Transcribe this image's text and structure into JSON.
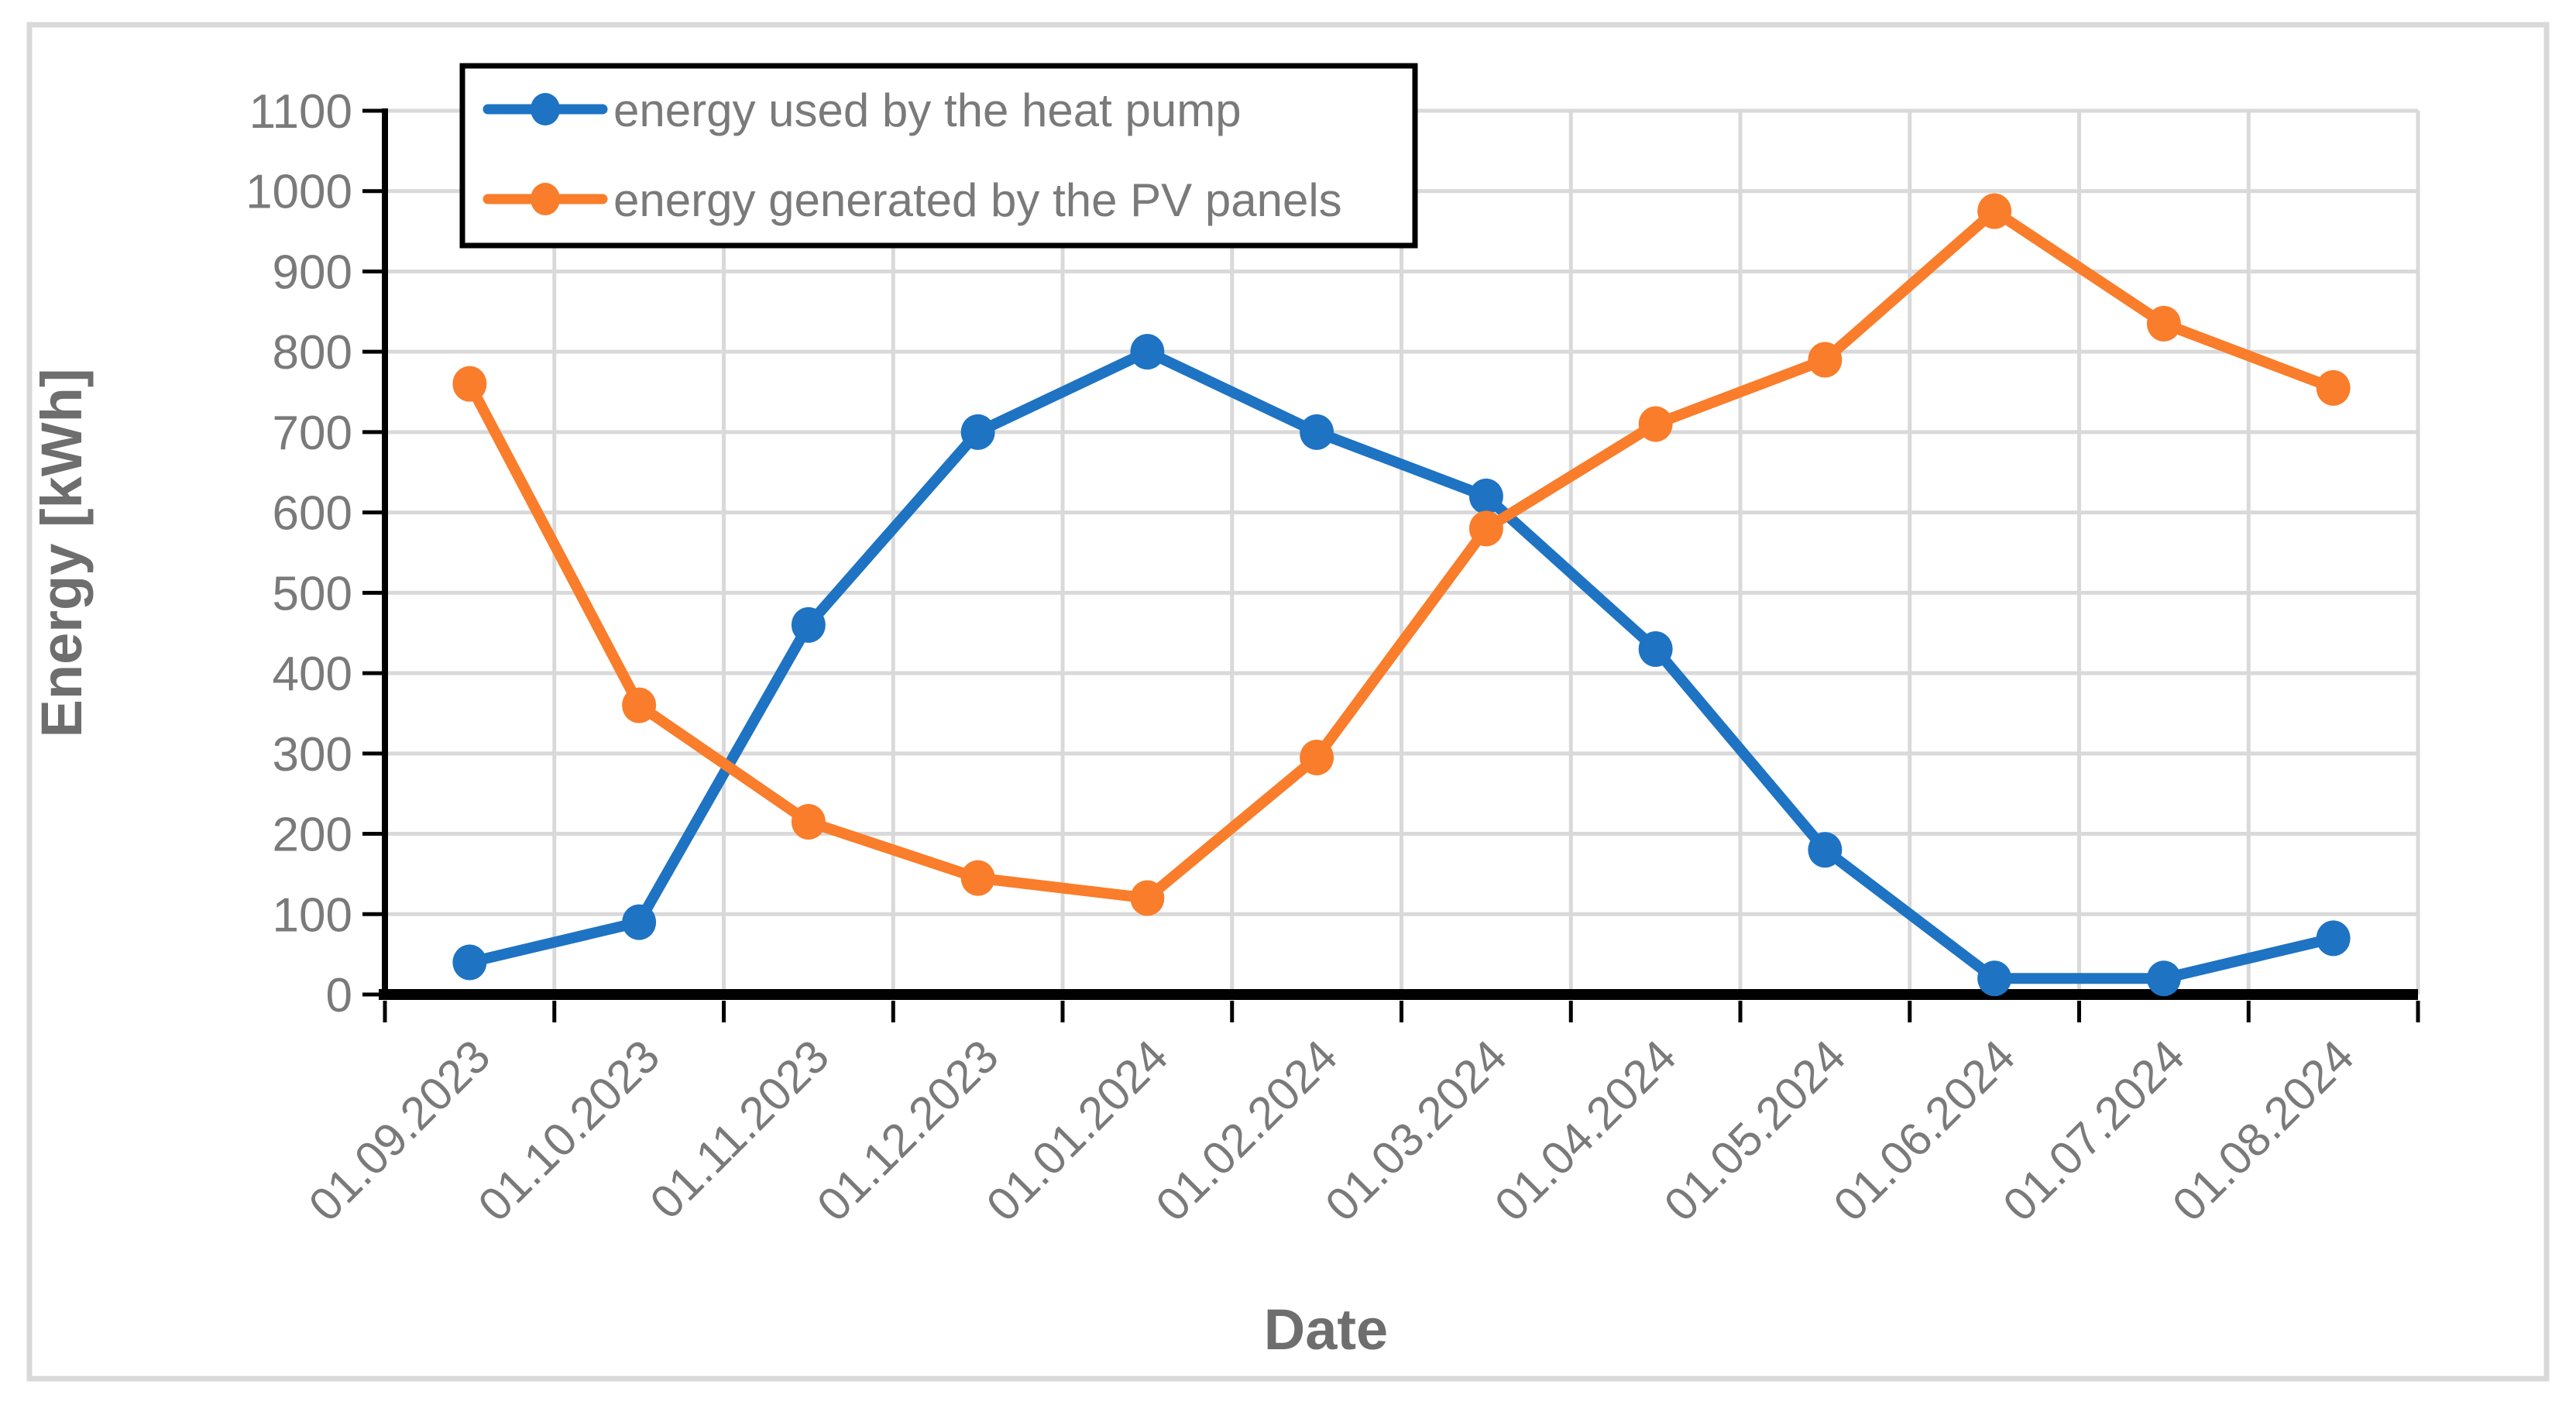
{
  "chart_data": {
    "type": "line",
    "title": "",
    "xlabel": "Date",
    "ylabel": "Energy [kWh]",
    "ylim": [
      0,
      1100
    ],
    "ytick_step": 100,
    "grid": true,
    "legend_position": "top-left-inside",
    "categories": [
      "01.09.2023",
      "01.10.2023",
      "01.11.2023",
      "01.12.2023",
      "01.01.2024",
      "01.02.2024",
      "01.03.2024",
      "01.04.2024",
      "01.05.2024",
      "01.06.2024",
      "01.07.2024",
      "01.08.2024"
    ],
    "series": [
      {
        "name": "energy used by the heat pump",
        "color": "#1E73C3",
        "marker": "circle",
        "values": [
          40,
          90,
          460,
          700,
          800,
          700,
          620,
          430,
          180,
          20,
          20,
          70
        ]
      },
      {
        "name": "energy generated by the PV panels",
        "color": "#F97D2B",
        "marker": "circle",
        "values": [
          760,
          360,
          215,
          145,
          120,
          295,
          580,
          710,
          790,
          975,
          835,
          755
        ]
      }
    ]
  },
  "style": {
    "gridline_color": "#D9D9D9",
    "outer_border_color": "#D9D9D9",
    "axis_color": "#000000",
    "tick_label_color": "#7A7A7A",
    "axis_title_color": "#6E6E6E",
    "legend_border_color": "#000000",
    "legend_background": "#FFFFFF",
    "legend_text_color": "#7A7A7A"
  }
}
